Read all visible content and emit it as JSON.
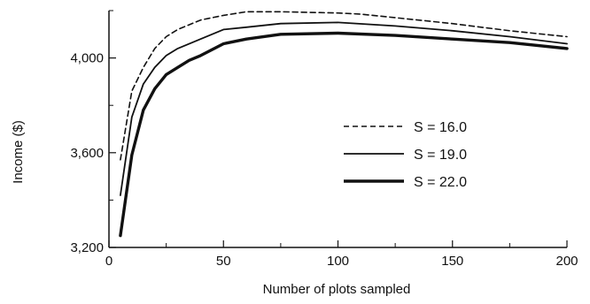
{
  "chart_data": {
    "type": "line",
    "title": "",
    "xlabel": "Number of plots sampled",
    "ylabel": "Income ($)",
    "xlim": [
      0,
      200
    ],
    "ylim": [
      3200,
      4200
    ],
    "x_ticks": [
      0,
      50,
      100,
      150,
      200
    ],
    "y_ticks": [
      3200,
      3600,
      4000
    ],
    "x_tick_labels": [
      "0",
      "50",
      "100",
      "150",
      "200"
    ],
    "y_tick_labels": [
      "3,200",
      "3,600",
      "4,000"
    ],
    "grid": false,
    "legend_position": "center-right",
    "series": [
      {
        "name": "S = 16.0",
        "style": "dashed",
        "x": [
          5,
          10,
          15,
          20,
          25,
          30,
          40,
          50,
          60,
          75,
          100,
          110,
          125,
          150,
          175,
          200
        ],
        "y": [
          3570,
          3860,
          3960,
          4040,
          4090,
          4120,
          4160,
          4180,
          4195,
          4195,
          4190,
          4185,
          4170,
          4145,
          4115,
          4090
        ]
      },
      {
        "name": "S = 19.0",
        "style": "solid",
        "x": [
          5,
          10,
          15,
          20,
          25,
          30,
          40,
          50,
          60,
          75,
          100,
          125,
          150,
          175,
          200
        ],
        "y": [
          3420,
          3750,
          3890,
          3960,
          4010,
          4040,
          4080,
          4120,
          4130,
          4145,
          4150,
          4135,
          4115,
          4090,
          4060
        ]
      },
      {
        "name": "S = 22.0",
        "style": "bold",
        "x": [
          5,
          10,
          15,
          20,
          25,
          30,
          35,
          40,
          50,
          60,
          75,
          100,
          125,
          150,
          175,
          200
        ],
        "y": [
          3250,
          3590,
          3780,
          3870,
          3930,
          3960,
          3990,
          4010,
          4060,
          4080,
          4100,
          4105,
          4095,
          4080,
          4065,
          4040
        ]
      }
    ]
  }
}
